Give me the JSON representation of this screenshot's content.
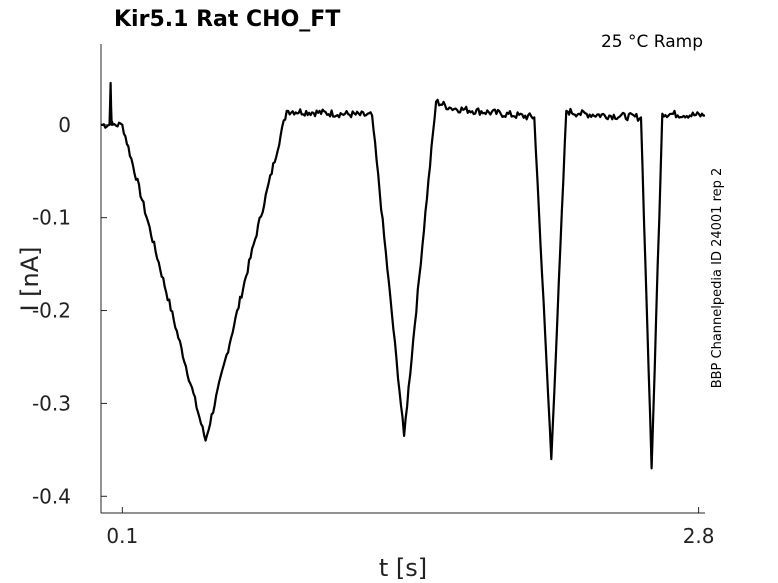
{
  "chart_data": {
    "type": "line",
    "title": "Kir5.1  Rat  CHO_FT",
    "annotation": "25 °C  Ramp",
    "side_label": "BBP Channelpedia ID 24001 rep 2",
    "xlabel": "t [s]",
    "ylabel": "I [nA]",
    "xlim": [
      0.0,
      2.83
    ],
    "ylim": [
      -0.418,
      0.087
    ],
    "x_ticks": [
      0.1,
      2.8
    ],
    "x_tick_labels": [
      "0.1",
      "2.8"
    ],
    "y_ticks": [
      0,
      -0.1,
      -0.2,
      -0.3,
      -0.4
    ],
    "y_tick_labels": [
      "0",
      "-0.1",
      "-0.2",
      "-0.3",
      "-0.4"
    ],
    "grid": false,
    "series": [
      {
        "color": "#000000",
        "x": [
          0.0,
          0.04,
          0.045,
          0.05,
          0.055,
          0.1,
          0.49,
          0.87,
          1.27,
          1.42,
          1.57,
          1.64,
          2.03,
          2.11,
          2.18,
          2.24,
          2.53,
          2.58,
          2.63,
          2.83
        ],
        "y": [
          0.0,
          0.0,
          0.045,
          0.0,
          0.0,
          0.0,
          -0.34,
          0.015,
          0.01,
          -0.335,
          0.025,
          0.018,
          0.008,
          -0.36,
          0.015,
          0.012,
          0.008,
          -0.37,
          0.012,
          0.01
        ]
      }
    ]
  }
}
